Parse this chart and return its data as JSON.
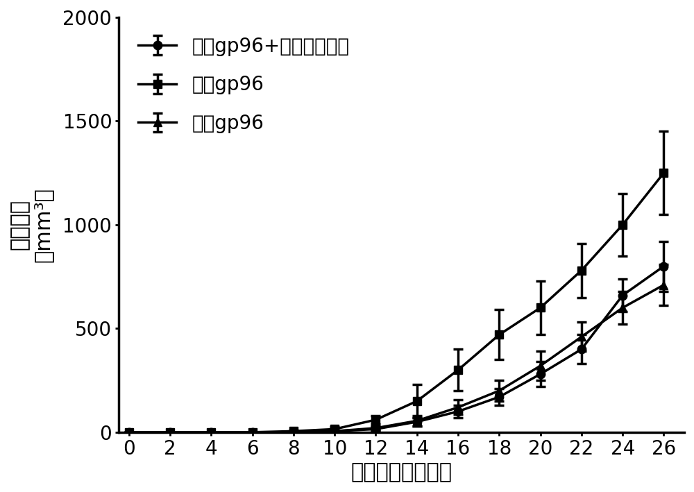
{
  "x": [
    0,
    2,
    4,
    6,
    8,
    10,
    12,
    14,
    16,
    18,
    20,
    22,
    24,
    26
  ],
  "series": [
    {
      "label": "重组gp96+多肽库复合物",
      "marker": "o",
      "y": [
        0,
        0,
        0,
        0,
        0,
        5,
        15,
        50,
        100,
        170,
        280,
        400,
        660,
        800
      ],
      "yerr": [
        0,
        0,
        0,
        0,
        0,
        5,
        10,
        20,
        30,
        40,
        60,
        70,
        80,
        120
      ]
    },
    {
      "label": "重组gp96",
      "marker": "s",
      "y": [
        0,
        0,
        0,
        0,
        5,
        15,
        60,
        150,
        300,
        470,
        600,
        780,
        1000,
        1250
      ],
      "yerr": [
        0,
        0,
        0,
        0,
        5,
        10,
        20,
        80,
        100,
        120,
        130,
        130,
        150,
        200
      ]
    },
    {
      "label": "胎盘gp96",
      "marker": "^",
      "y": [
        0,
        0,
        0,
        0,
        0,
        5,
        20,
        55,
        120,
        200,
        320,
        460,
        600,
        710
      ],
      "yerr": [
        0,
        0,
        0,
        0,
        0,
        5,
        10,
        25,
        35,
        50,
        70,
        70,
        80,
        100
      ]
    }
  ],
  "xlabel": "接癌后时间（天）",
  "ylabel_line1": "肿瘾尺寸",
  "ylabel_line2": "（mm³）",
  "xlim": [
    -0.5,
    27
  ],
  "ylim": [
    0,
    2000
  ],
  "yticks": [
    0,
    500,
    1000,
    1500,
    2000
  ],
  "xticks": [
    0,
    2,
    4,
    6,
    8,
    10,
    12,
    14,
    16,
    18,
    20,
    22,
    24,
    26
  ],
  "line_color": "#000000",
  "marker_size": 9,
  "line_width": 2.5,
  "label_fontsize": 22,
  "tick_fontsize": 20,
  "legend_fontsize": 20,
  "capsize": 5
}
